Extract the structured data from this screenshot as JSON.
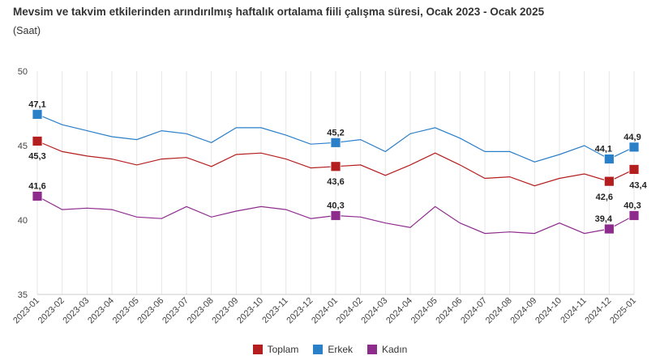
{
  "chart_data": {
    "type": "line",
    "title": "Mevsim ve takvim etkilerinden arındırılmış haftalık ortalama fiili çalışma süresi, Ocak 2023 - Ocak 2025",
    "subtitle": "(Saat)",
    "categories": [
      "2023-01",
      "2023-02",
      "2023-03",
      "2023-04",
      "2023-05",
      "2023-06",
      "2023-07",
      "2023-08",
      "2023-09",
      "2023-10",
      "2023-11",
      "2023-12",
      "2024-01",
      "2024-02",
      "2024-03",
      "2024-04",
      "2024-05",
      "2024-06",
      "2024-07",
      "2024-08",
      "2024-09",
      "2024-10",
      "2024-11",
      "2024-12",
      "2025-01"
    ],
    "yticks": [
      "50",
      "45",
      "40",
      "35"
    ],
    "ylim": [
      35,
      50
    ],
    "grid": "vertical",
    "legend_position": "bottom",
    "series": [
      {
        "name": "Toplam",
        "color": "#b41e1e",
        "values": [
          45.3,
          44.6,
          44.3,
          44.1,
          43.7,
          44.1,
          44.2,
          43.6,
          44.4,
          44.5,
          44.1,
          43.5,
          43.6,
          43.7,
          43.0,
          43.7,
          44.5,
          43.7,
          42.8,
          42.9,
          42.3,
          42.8,
          43.1,
          42.6,
          43.4
        ],
        "labels": {
          "0": "45,3",
          "12": "43,6",
          "23": "42,6",
          "24": "43,4"
        }
      },
      {
        "name": "Erkek",
        "color": "#2a7fc9",
        "values": [
          47.1,
          46.4,
          46.0,
          45.6,
          45.4,
          46.0,
          45.8,
          45.2,
          46.2,
          46.2,
          45.7,
          45.1,
          45.2,
          45.4,
          44.6,
          45.8,
          46.2,
          45.5,
          44.6,
          44.6,
          43.9,
          44.4,
          45.0,
          44.1,
          44.9
        ],
        "labels": {
          "0": "47,1",
          "12": "45,2",
          "23": "44,1",
          "24": "44,9"
        }
      },
      {
        "name": "Kadın",
        "color": "#8e2c8e",
        "values": [
          41.6,
          40.7,
          40.8,
          40.7,
          40.2,
          40.1,
          40.9,
          40.2,
          40.6,
          40.9,
          40.7,
          40.1,
          40.3,
          40.2,
          39.8,
          39.5,
          40.9,
          39.8,
          39.1,
          39.2,
          39.1,
          39.8,
          39.1,
          39.4,
          40.3
        ],
        "labels": {
          "0": "41,6",
          "12": "40,3",
          "23": "39,4",
          "24": "40,3"
        }
      }
    ]
  }
}
